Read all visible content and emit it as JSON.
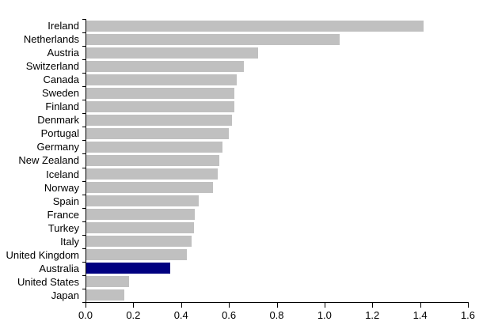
{
  "chart_data": {
    "type": "bar",
    "orientation": "horizontal",
    "title": "",
    "xlabel": "",
    "ylabel": "",
    "categories": [
      "Ireland",
      "Netherlands",
      "Austria",
      "Switzerland",
      "Canada",
      "Sweden",
      "Finland",
      "Denmark",
      "Portugal",
      "Germany",
      "New Zealand",
      "Iceland",
      "Norway",
      "Spain",
      "France",
      "Turkey",
      "Italy",
      "United Kingdom",
      "Australia",
      "United States",
      "Japan"
    ],
    "values": [
      1.41,
      1.06,
      0.72,
      0.66,
      0.63,
      0.62,
      0.62,
      0.61,
      0.595,
      0.57,
      0.555,
      0.55,
      0.53,
      0.47,
      0.455,
      0.45,
      0.44,
      0.42,
      0.35,
      0.18,
      0.16
    ],
    "highlight_category": "Australia",
    "colors": {
      "bar": "#c0c0c0",
      "highlight": "#000080",
      "axis": "#000000",
      "text": "#000000",
      "background": "#ffffff"
    },
    "xlim": [
      0,
      1.6
    ],
    "xtick_labels": [
      "0.0",
      "0.2",
      "0.4",
      "0.6",
      "0.8",
      "1.0",
      "1.2",
      "1.4",
      "1.6"
    ],
    "grid": false,
    "legend": false
  }
}
